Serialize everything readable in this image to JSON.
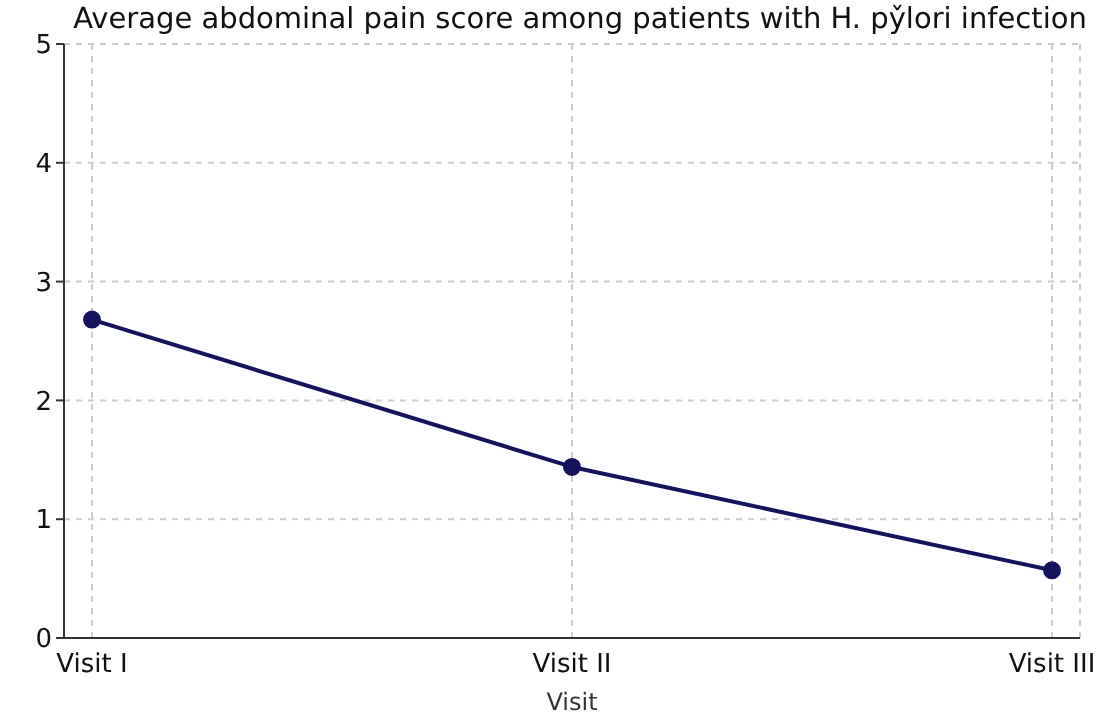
{
  "chart_data": {
    "type": "line",
    "title": "Average abdominal pain score among patients with H. py̌lori infection",
    "xlabel": "Visit",
    "categories": [
      "Visit I",
      "Visit II",
      "Visit III"
    ],
    "series": [
      {
        "color": "#15135c",
        "values": [
          2.68,
          1.44,
          0.57
        ]
      }
    ],
    "ylim": [
      0,
      5
    ],
    "yticks": [
      0,
      1,
      2,
      3,
      4,
      5
    ],
    "grid": true,
    "marker": "circle",
    "line_style": "solid"
  }
}
